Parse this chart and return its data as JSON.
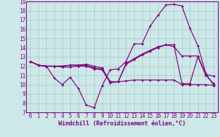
{
  "x": [
    0,
    1,
    2,
    3,
    4,
    5,
    6,
    7,
    8,
    9,
    10,
    11,
    12,
    13,
    14,
    15,
    16,
    17,
    18,
    19,
    20,
    21,
    22,
    23
  ],
  "line1": [
    12.5,
    12.1,
    12.0,
    10.7,
    10.0,
    10.8,
    9.6,
    7.8,
    7.5,
    9.9,
    11.6,
    11.7,
    12.5,
    14.4,
    14.4,
    16.3,
    17.5,
    18.6,
    18.7,
    18.5,
    16.1,
    14.2,
    11.2,
    9.9
  ],
  "line2": [
    12.5,
    12.1,
    12.0,
    12.0,
    11.9,
    11.9,
    12.0,
    12.0,
    11.7,
    11.6,
    10.2,
    10.3,
    12.2,
    12.7,
    13.2,
    13.6,
    14.0,
    14.3,
    14.1,
    13.1,
    13.1,
    13.1,
    11.1,
    10.9
  ],
  "line3": [
    12.5,
    12.1,
    12.0,
    12.0,
    12.0,
    12.1,
    12.1,
    12.1,
    11.8,
    11.7,
    10.3,
    10.3,
    12.3,
    12.8,
    13.3,
    13.7,
    14.1,
    14.3,
    14.3,
    10.1,
    10.1,
    13.0,
    11.0,
    10.1
  ],
  "line4": [
    12.5,
    12.1,
    12.0,
    12.0,
    12.0,
    12.1,
    12.1,
    12.2,
    12.0,
    11.8,
    10.3,
    10.3,
    10.4,
    10.5,
    10.5,
    10.5,
    10.5,
    10.5,
    10.5,
    10.0,
    10.0,
    10.0,
    10.0,
    9.9
  ],
  "line_color": "#800080",
  "bg_color": "#cce8e8",
  "grid_color": "#aacccc",
  "xlabel": "Windchill (Refroidissement éolien,°C)",
  "ylim": [
    7,
    19
  ],
  "xlim": [
    -0.5,
    23.5
  ],
  "yticks": [
    7,
    8,
    9,
    10,
    11,
    12,
    13,
    14,
    15,
    16,
    17,
    18,
    19
  ],
  "xticks": [
    0,
    1,
    2,
    3,
    4,
    5,
    6,
    7,
    8,
    9,
    10,
    11,
    12,
    13,
    14,
    15,
    16,
    17,
    18,
    19,
    20,
    21,
    22,
    23
  ],
  "marker_size": 2.0,
  "line_width": 0.9
}
